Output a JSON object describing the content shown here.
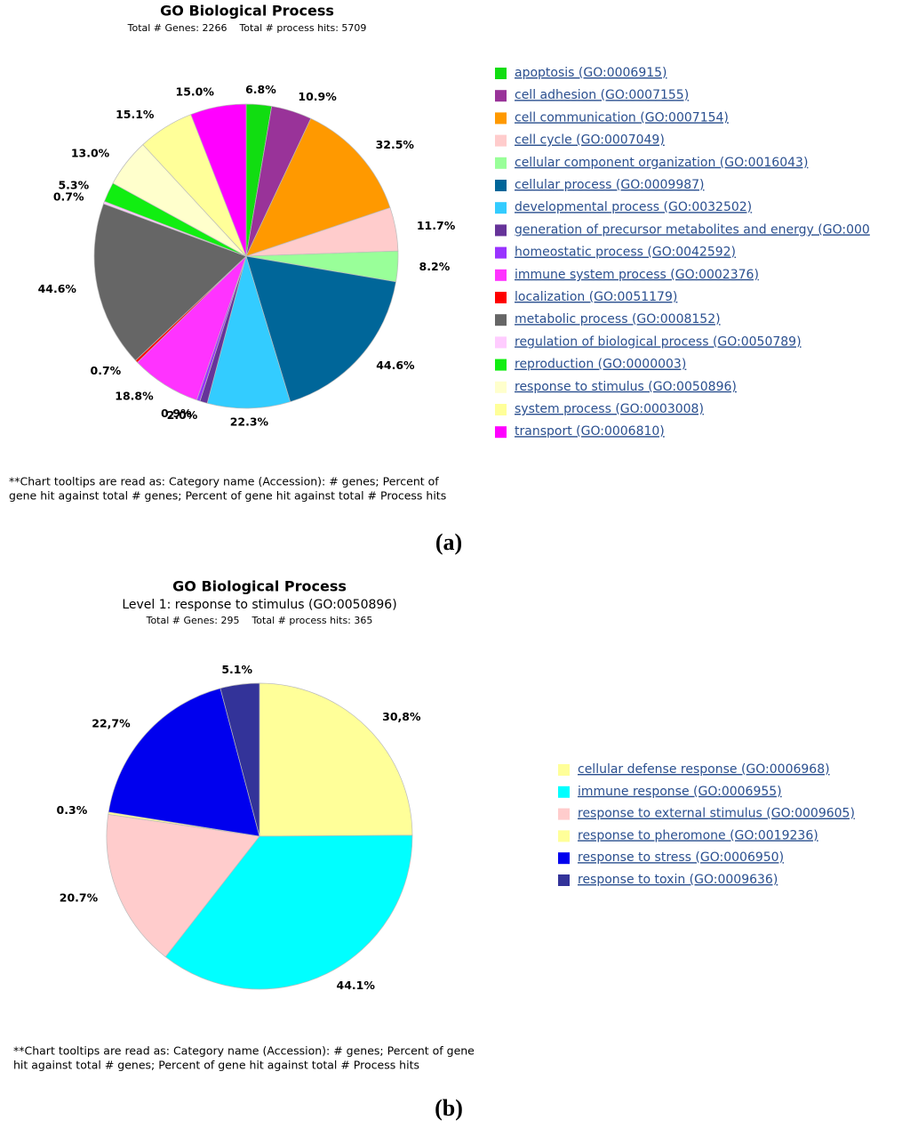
{
  "chart_data": [
    {
      "type": "pie",
      "panel_label": "(a)",
      "title": "GO Biological Process",
      "subtitles": [
        "Total # Genes: 2266    Total # process hits: 5709"
      ],
      "categories": [
        "apoptosis (GO:0006915)",
        "cell adhesion (GO:0007155)",
        "cell communication (GO:0007154)",
        "cell cycle (GO:0007049)",
        "cellular component organization (GO:0016043)",
        "cellular process (GO:0009987)",
        "developmental process (GO:0032502)",
        "generation of precursor metabolites and energy (GO:000",
        "homeostatic process (GO:0042592)",
        "immune system process (GO:0002376)",
        "localization (GO:0051179)",
        "metabolic process (GO:0008152)",
        "regulation of biological process (GO:0050789)",
        "reproduction (GO:0000003)",
        "response to stimulus (GO:0050896)",
        "system process (GO:0003008)",
        "transport (GO:0006810)"
      ],
      "values": [
        6.8,
        10.9,
        32.5,
        11.7,
        8.2,
        44.6,
        22.3,
        2.0,
        0.9,
        18.8,
        0.7,
        44.6,
        0.7,
        5.3,
        13.0,
        15.1,
        15.0
      ],
      "value_labels": [
        "6.8%",
        "10.9%",
        "32.5%",
        "11.7%",
        "8.2%",
        "44.6%",
        "22.3%",
        "2.0%",
        "0.9%",
        "18.8%",
        "0.7%",
        "44.6%",
        "0.7%",
        "5.3%",
        "13.0%",
        "15.1%",
        "15.0%"
      ],
      "colors": [
        "#11dd11",
        "#993399",
        "#ff9900",
        "#ffcccc",
        "#99ff99",
        "#006699",
        "#33ccff",
        "#663399",
        "#9933ff",
        "#ff33ff",
        "#ff0000",
        "#666666",
        "#ffccff",
        "#11ee11",
        "#ffffcc",
        "#ffff99",
        "#ff00ff"
      ],
      "footnote": [
        "**Chart tooltips are read as: Category name (Accession): # genes; Percent of",
        "gene hit against total # genes; Percent of gene hit against total # Process hits"
      ]
    },
    {
      "type": "pie",
      "panel_label": "(b)",
      "title": "GO Biological Process",
      "subtitles": [
        "Level 1: response to stimulus (GO:0050896)",
        "Total # Genes: 295    Total # process hits: 365"
      ],
      "categories": [
        "cellular defense response (GO:0006968)",
        "immune response (GO:0006955)",
        "response to external stimulus (GO:0009605)",
        "response to pheromone (GO:0019236)",
        "response to stress (GO:0006950)",
        "response to toxin (GO:0009636)"
      ],
      "values": [
        30.8,
        44.1,
        20.7,
        0.3,
        22.7,
        5.1
      ],
      "value_labels": [
        "30,8%",
        "44.1%",
        "20.7%",
        "0.3%",
        "22,7%",
        "5.1%"
      ],
      "colors": [
        "#ffff99",
        "#00ffff",
        "#ffcccc",
        "#ffff99",
        "#0000ee",
        "#333399"
      ],
      "footnote": [
        "**Chart tooltips are read as: Category name (Accession): # genes; Percent of gene",
        "hit against total # genes; Percent of gene hit against total # Process hits"
      ]
    }
  ]
}
